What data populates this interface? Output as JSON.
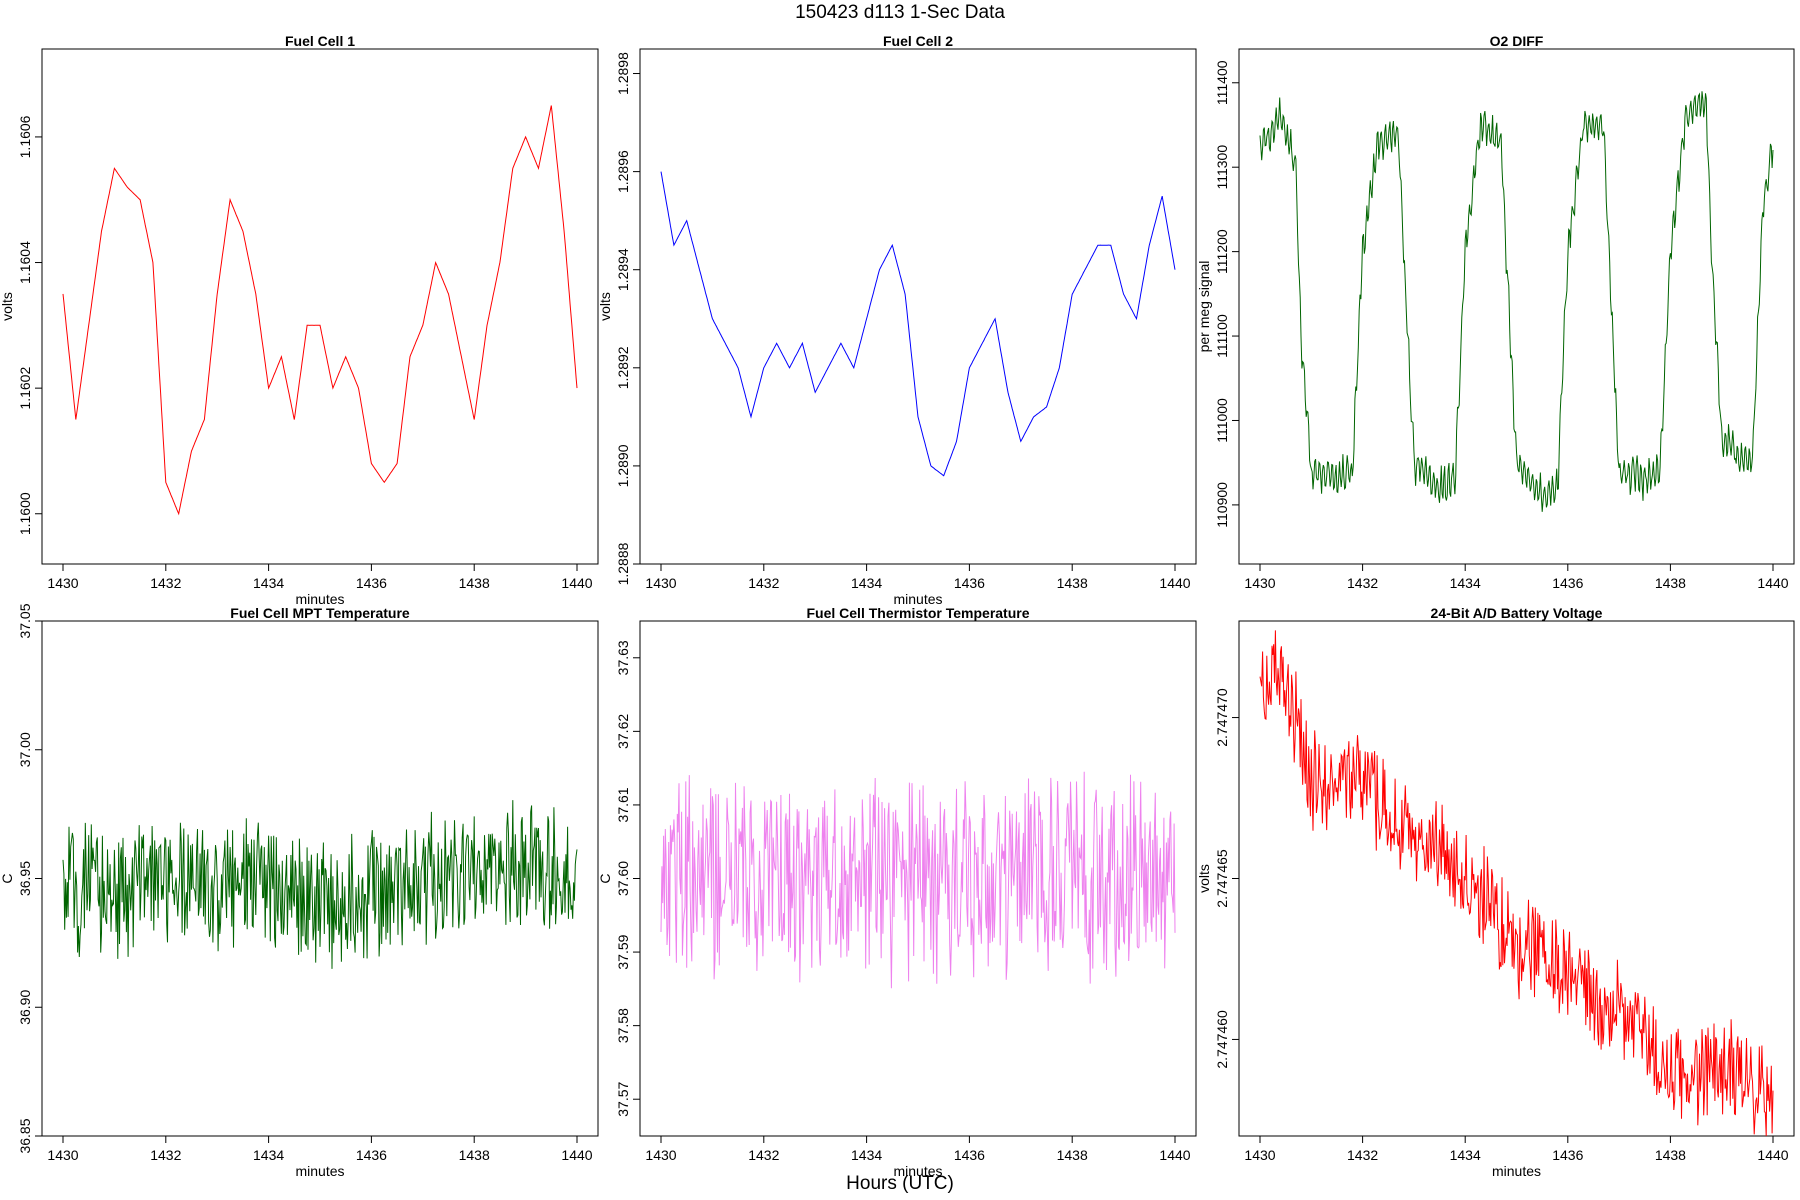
{
  "title": "150423    d113    1-Sec Data",
  "bottom_label": "Hours (UTC)",
  "chart_data": [
    {
      "type": "line",
      "title": "Fuel Cell 1",
      "xlabel": "minutes",
      "ylabel": "volts",
      "color": "#ff0000",
      "xlim": [
        1430,
        1440
      ],
      "ylim": [
        1.15992,
        1.16074
      ],
      "xticks": [
        "1430",
        "1432",
        "1434",
        "1436",
        "1438",
        "1440"
      ],
      "yticks": [
        "1.1600",
        "1.1602",
        "1.1604",
        "1.1606"
      ],
      "x": [
        1430.0,
        1430.25,
        1430.5,
        1430.75,
        1431.0,
        1431.25,
        1431.5,
        1431.75,
        1432.0,
        1432.25,
        1432.5,
        1432.75,
        1433.0,
        1433.25,
        1433.5,
        1433.75,
        1434.0,
        1434.25,
        1434.5,
        1434.75,
        1435.0,
        1435.25,
        1435.5,
        1435.75,
        1436.0,
        1436.25,
        1436.5,
        1436.75,
        1437.0,
        1437.25,
        1437.5,
        1437.75,
        1438.0,
        1438.25,
        1438.5,
        1438.75,
        1439.0,
        1439.25,
        1439.5,
        1439.75,
        1440.0
      ],
      "y": [
        1.16035,
        1.16015,
        1.1603,
        1.16045,
        1.16055,
        1.16052,
        1.1605,
        1.1604,
        1.16005,
        1.16,
        1.1601,
        1.16015,
        1.16035,
        1.1605,
        1.16045,
        1.16035,
        1.1602,
        1.16025,
        1.16015,
        1.1603,
        1.1603,
        1.1602,
        1.16025,
        1.1602,
        1.16008,
        1.16005,
        1.16008,
        1.16025,
        1.1603,
        1.1604,
        1.16035,
        1.16025,
        1.16015,
        1.1603,
        1.1604,
        1.16055,
        1.1606,
        1.16055,
        1.16065,
        1.16045,
        1.1602
      ]
    },
    {
      "type": "line",
      "title": "Fuel Cell 2",
      "xlabel": "minutes",
      "ylabel": "volts",
      "color": "#0000ff",
      "xlim": [
        1430,
        1440
      ],
      "ylim": [
        1.2888,
        1.28985
      ],
      "xticks": [
        "1430",
        "1432",
        "1434",
        "1436",
        "1438",
        "1440"
      ],
      "yticks": [
        "1.2888",
        "1.2890",
        "1.2892",
        "1.2894",
        "1.2896",
        "1.2898"
      ],
      "x": [
        1430.0,
        1430.25,
        1430.5,
        1430.75,
        1431.0,
        1431.25,
        1431.5,
        1431.75,
        1432.0,
        1432.25,
        1432.5,
        1432.75,
        1433.0,
        1433.25,
        1433.5,
        1433.75,
        1434.0,
        1434.25,
        1434.5,
        1434.75,
        1435.0,
        1435.25,
        1435.5,
        1435.75,
        1436.0,
        1436.25,
        1436.5,
        1436.75,
        1437.0,
        1437.25,
        1437.5,
        1437.75,
        1438.0,
        1438.25,
        1438.5,
        1438.75,
        1439.0,
        1439.25,
        1439.5,
        1439.75,
        1440.0
      ],
      "y": [
        1.2896,
        1.28945,
        1.2895,
        1.2894,
        1.2893,
        1.28925,
        1.2892,
        1.2891,
        1.2892,
        1.28925,
        1.2892,
        1.28925,
        1.28915,
        1.2892,
        1.28925,
        1.2892,
        1.2893,
        1.2894,
        1.28945,
        1.28935,
        1.2891,
        1.289,
        1.28898,
        1.28905,
        1.2892,
        1.28925,
        1.2893,
        1.28915,
        1.28905,
        1.2891,
        1.28912,
        1.2892,
        1.28935,
        1.2894,
        1.28945,
        1.28945,
        1.28935,
        1.2893,
        1.28945,
        1.28955,
        1.2894
      ]
    },
    {
      "type": "line",
      "title": "O2 DIFF",
      "xlabel": "",
      "ylabel": "per meg signal",
      "color": "#006400",
      "xlim": [
        1430,
        1440
      ],
      "ylim": [
        110830,
        111440
      ],
      "xticks": [
        "1430",
        "1432",
        "1434",
        "1436",
        "1438",
        "1440"
      ],
      "yticks": [
        "110900",
        "111000",
        "111100",
        "111200",
        "111300",
        "111400"
      ],
      "x": [
        1430.0,
        1430.4,
        1430.7,
        1430.8,
        1431.0,
        1431.5,
        1431.8,
        1432.0,
        1432.3,
        1432.7,
        1432.8,
        1433.0,
        1433.5,
        1433.8,
        1434.0,
        1434.3,
        1434.7,
        1434.8,
        1435.0,
        1435.5,
        1435.8,
        1436.0,
        1436.3,
        1436.7,
        1436.8,
        1437.0,
        1437.5,
        1437.8,
        1438.0,
        1438.3,
        1438.7,
        1438.8,
        1439.0,
        1439.3,
        1439.6,
        1439.8,
        1440.0
      ],
      "y": [
        111320,
        111360,
        111300,
        111100,
        110940,
        110930,
        110940,
        111200,
        111330,
        111340,
        111200,
        110950,
        110920,
        110930,
        111200,
        111350,
        111330,
        111200,
        110950,
        110910,
        110920,
        111200,
        111350,
        111350,
        111200,
        110940,
        110930,
        110940,
        111200,
        111360,
        111380,
        111200,
        110980,
        110960,
        110950,
        111250,
        111330
      ]
    },
    {
      "type": "line",
      "title": "Fuel Cell MPT Temperature",
      "xlabel": "minutes",
      "ylabel": "C",
      "color": "#006400",
      "xlim": [
        1430,
        1440
      ],
      "ylim": [
        36.85,
        37.05
      ],
      "xticks": [
        "1430",
        "1432",
        "1434",
        "1436",
        "1438",
        "1440"
      ],
      "yticks": [
        "36.85",
        "36.90",
        "36.95",
        "37.00",
        "37.05"
      ],
      "x": [
        1430,
        1431,
        1432,
        1433,
        1434,
        1435,
        1436,
        1437,
        1438,
        1439,
        1440
      ],
      "y": [
        36.945,
        36.945,
        36.95,
        36.945,
        36.95,
        36.94,
        36.945,
        36.95,
        36.95,
        36.955,
        36.95
      ]
    },
    {
      "type": "line",
      "title": "Fuel Cell Thermistor Temperature",
      "xlabel": "minutes",
      "ylabel": "C",
      "color": "#ee82ee",
      "xlim": [
        1430,
        1440
      ],
      "ylim": [
        37.565,
        37.635
      ],
      "xticks": [
        "1430",
        "1432",
        "1434",
        "1436",
        "1438",
        "1440"
      ],
      "yticks": [
        "37.57",
        "37.58",
        "37.59",
        "37.60",
        "37.61",
        "37.62",
        "37.63"
      ],
      "x": [
        1430,
        1431,
        1432,
        1433,
        1434,
        1435,
        1436,
        1437,
        1438,
        1439,
        1440
      ],
      "y": [
        37.6,
        37.6,
        37.6,
        37.601,
        37.6,
        37.6,
        37.6,
        37.6,
        37.601,
        37.6,
        37.6
      ]
    },
    {
      "type": "line",
      "title": "24-Bit A/D Battery Voltage",
      "xlabel": "minutes",
      "ylabel": "volts",
      "color": "#ff0000",
      "xlim": [
        1430,
        1440
      ],
      "ylim": [
        2.747457,
        2.747473
      ],
      "xticks": [
        "1430",
        "1432",
        "1434",
        "1436",
        "1438",
        "1440"
      ],
      "yticks": [
        "2.747460",
        "2.747465",
        "2.747470"
      ],
      "x": [
        1430.0,
        1430.5,
        1431.0,
        1431.5,
        1432.0,
        1432.5,
        1433.0,
        1433.5,
        1434.0,
        1434.5,
        1435.0,
        1435.5,
        1436.0,
        1436.5,
        1437.0,
        1437.5,
        1438.0,
        1438.5,
        1439.0,
        1439.5,
        1440.0
      ],
      "y": [
        2.747471,
        2.747471,
        2.747468,
        2.747468,
        2.747468,
        2.747467,
        2.747466,
        2.747466,
        2.747465,
        2.747464,
        2.747463,
        2.747463,
        2.747462,
        2.747461,
        2.747461,
        2.74746,
        2.747459,
        2.747459,
        2.747459,
        2.747459,
        2.747458
      ]
    }
  ]
}
